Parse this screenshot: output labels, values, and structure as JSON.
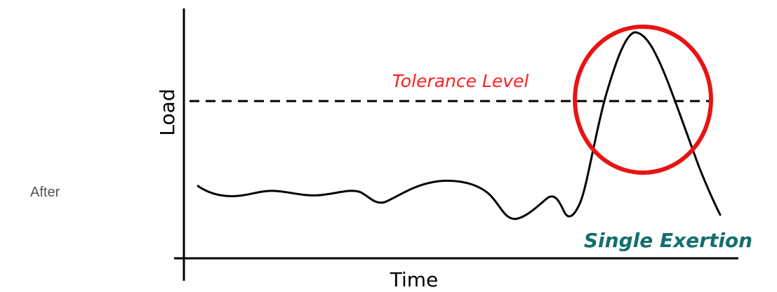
{
  "side_label": "After",
  "diagram": {
    "y_axis_label": "Load",
    "x_axis_label": "Time",
    "threshold_label": "Tolerance Level",
    "peak_label": "Single Exertion",
    "colors": {
      "threshold_label": "#ff2020",
      "peak_circle": "#e81414",
      "peak_label": "#146e6e",
      "curve": "#000000"
    }
  }
}
